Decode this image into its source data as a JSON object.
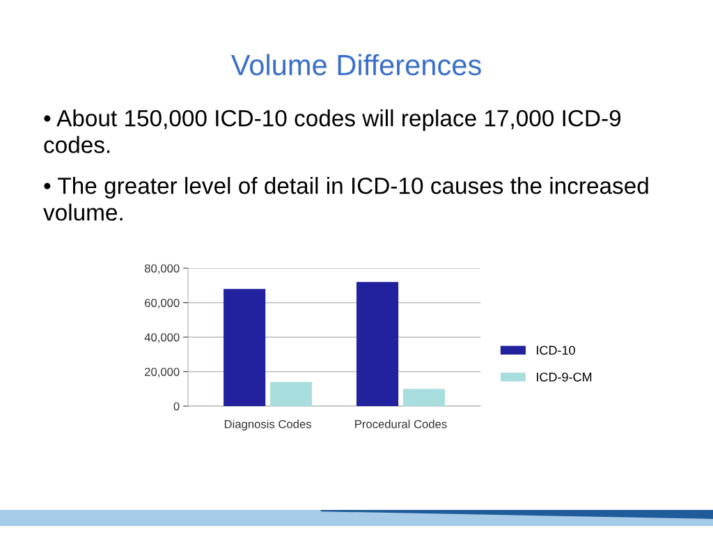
{
  "chart_data": {
    "type": "bar",
    "title": "Volume Differences",
    "annotations": [
      "• About 150,000 ICD-10 codes will replace 17,000 ICD-9 codes.",
      "• The greater level of detail in ICD-10 causes the increased volume."
    ],
    "categories": [
      "Diagnosis Codes",
      "Procedural Codes"
    ],
    "series": [
      {
        "name": "ICD-10",
        "color": "#22229e",
        "values": [
          68000,
          72000
        ]
      },
      {
        "name": "ICD-9-CM",
        "color": "#a9dede",
        "values": [
          14000,
          10000
        ]
      }
    ],
    "ylim": [
      0,
      80000
    ],
    "yticks": [
      0,
      {
        "value": 20000,
        "label": "20,000"
      },
      {
        "value": 40000,
        "label": "40,000"
      },
      {
        "value": 60000,
        "label": "60,000"
      },
      {
        "value": 80000,
        "label": "80,000"
      }
    ],
    "grid": "y",
    "legend": "right"
  }
}
